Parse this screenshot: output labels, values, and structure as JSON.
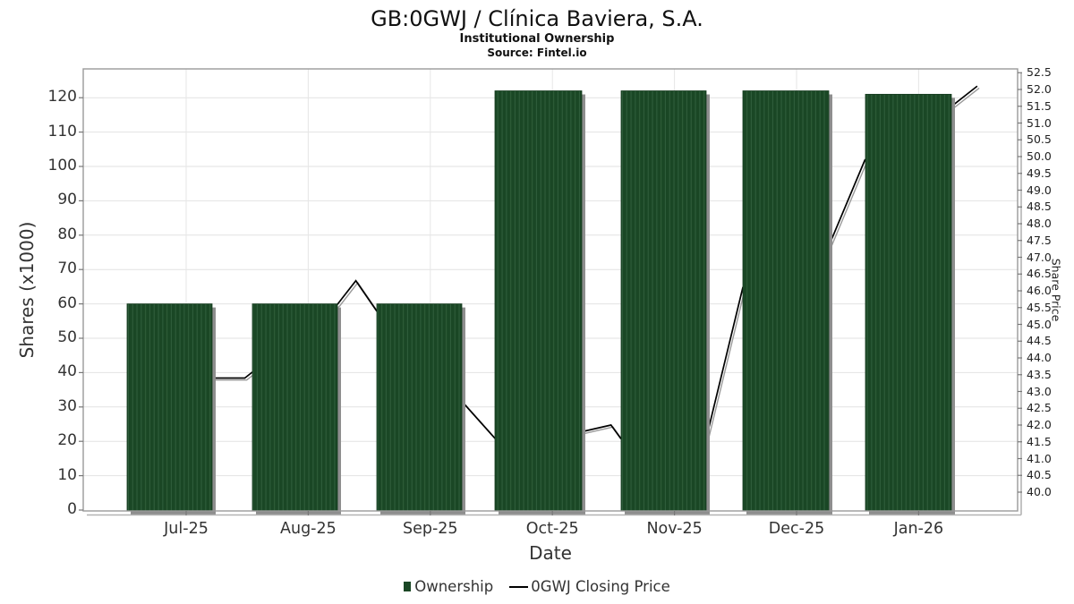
{
  "chart_data": {
    "type": "combo",
    "title": "GB:0GWJ / Clínica Baviera, S.A.",
    "subtitle": "Institutional Ownership",
    "source": "Source: Fintel.io",
    "xlabel": "Date",
    "ylabel_left": "Shares (x1000)",
    "ylabel_right": "Share Price",
    "categories": [
      "Jul-25",
      "Aug-25",
      "Sep-25",
      "Oct-25",
      "Nov-25",
      "Dec-25",
      "Jan-26"
    ],
    "yticks_left": [
      0,
      10,
      20,
      30,
      40,
      50,
      60,
      70,
      80,
      90,
      100,
      110,
      120
    ],
    "yticks_right": [
      40.0,
      40.5,
      41.0,
      41.5,
      42.0,
      42.5,
      43.0,
      43.5,
      44.0,
      44.5,
      45.0,
      45.5,
      46.0,
      46.5,
      47.0,
      47.5,
      48.0,
      48.5,
      49.0,
      49.5,
      50.0,
      50.5,
      51.0,
      51.5,
      52.0,
      52.5
    ],
    "ylim_left": [
      0,
      128
    ],
    "ylim_right": [
      39.5,
      52.6
    ],
    "grid": "light-gray horizontal and vertical",
    "legend_position": "bottom-center",
    "series": [
      {
        "name": "Ownership",
        "kind": "bar",
        "axis": "left",
        "values": [
          60,
          60,
          60,
          122,
          122,
          122,
          121
        ],
        "color": "#1a4725",
        "stripe_color": "#2f5d3a"
      },
      {
        "name": "0GWJ Closing Price",
        "kind": "line",
        "axis": "right",
        "color": "#000000",
        "points_month_price": [
          [
            0.0,
            43.4
          ],
          [
            0.48,
            43.4
          ],
          [
            0.55,
            43.6
          ],
          [
            1.24,
            45.6
          ],
          [
            1.39,
            46.3
          ],
          [
            1.56,
            45.4
          ],
          [
            2.26,
            42.7
          ],
          [
            2.53,
            41.6
          ],
          [
            3.24,
            41.8
          ],
          [
            3.48,
            42.0
          ],
          [
            3.56,
            41.6
          ],
          [
            4.26,
            41.6
          ],
          [
            4.56,
            46.1
          ],
          [
            5.26,
            47.3
          ],
          [
            5.56,
            49.9
          ],
          [
            6.27,
            51.5
          ],
          [
            6.48,
            52.1
          ]
        ]
      }
    ],
    "legend": [
      {
        "label": "Ownership",
        "marker": "square",
        "color": "#1a4725"
      },
      {
        "label": "0GWJ Closing Price",
        "marker": "line",
        "color": "#000000"
      }
    ]
  }
}
